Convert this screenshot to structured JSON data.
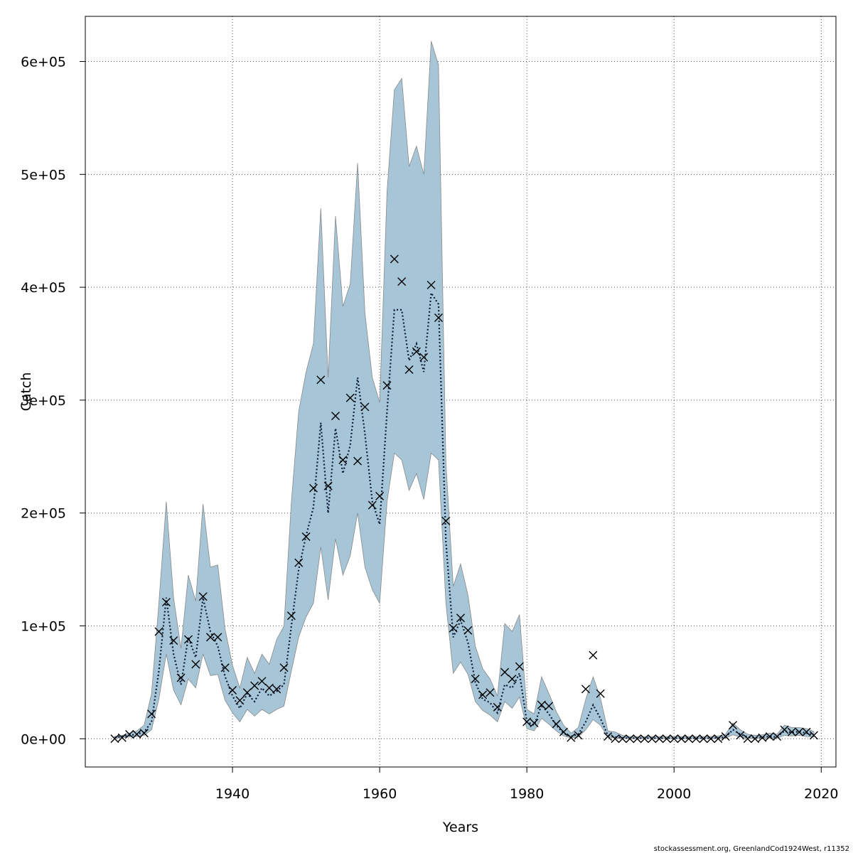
{
  "chart_data": {
    "type": "line",
    "title": "",
    "xlabel": "Years",
    "ylabel": "Catch",
    "xlim": [
      1920,
      2022
    ],
    "ylim": [
      -25000,
      640000
    ],
    "x_ticks": [
      1940,
      1960,
      1980,
      2000,
      2020
    ],
    "x_tick_labels": [
      "1940",
      "1960",
      "1980",
      "2000",
      "2020"
    ],
    "y_ticks": [
      0,
      100000,
      200000,
      300000,
      400000,
      500000,
      600000
    ],
    "y_tick_labels": [
      "0e+00",
      "1e+05",
      "2e+05",
      "3e+05",
      "4e+05",
      "5e+05",
      "6e+05"
    ],
    "grid": true,
    "colors": {
      "band": "#a6c5d6",
      "band_edge": "#8a8a8a",
      "line": "#0a1a3a",
      "points": "#000000",
      "grid": "#555555"
    },
    "footer_text": "stockassessment.org, GreenlandCod1924West, r11352",
    "series": [
      {
        "kind": "estimate",
        "x": [
          1924,
          1925,
          1926,
          1927,
          1928,
          1929,
          1930,
          1931,
          1932,
          1933,
          1934,
          1935,
          1936,
          1937,
          1938,
          1939,
          1940,
          1941,
          1942,
          1943,
          1944,
          1945,
          1946,
          1947,
          1948,
          1949,
          1950,
          1951,
          1952,
          1953,
          1954,
          1955,
          1956,
          1957,
          1958,
          1959,
          1960,
          1961,
          1962,
          1963,
          1964,
          1965,
          1966,
          1967,
          1968,
          1969,
          1970,
          1971,
          1972,
          1973,
          1974,
          1975,
          1976,
          1977,
          1978,
          1979,
          1980,
          1981,
          1982,
          1983,
          1984,
          1985,
          1986,
          1987,
          1988,
          1989,
          1990,
          1991,
          1992,
          1993,
          1994,
          1995,
          1996,
          1997,
          1998,
          1999,
          2000,
          2001,
          2002,
          2003,
          2004,
          2005,
          2006,
          2007,
          2008,
          2009,
          2010,
          2011,
          2012,
          2013,
          2014,
          2015,
          2016,
          2017,
          2018,
          2019
        ],
        "y": [
          1000,
          2000,
          3000,
          4000,
          6000,
          15000,
          60000,
          125000,
          75000,
          48000,
          90000,
          72000,
          125000,
          95000,
          82000,
          55000,
          38000,
          27000,
          40000,
          33000,
          45000,
          38000,
          42000,
          48000,
          100000,
          150000,
          180000,
          205000,
          280000,
          200000,
          275000,
          235000,
          260000,
          320000,
          270000,
          210000,
          190000,
          290000,
          380000,
          380000,
          335000,
          350000,
          325000,
          395000,
          385000,
          175000,
          90000,
          105000,
          85000,
          50000,
          35000,
          32000,
          23000,
          48000,
          45000,
          58000,
          15000,
          12000,
          30000,
          22000,
          12000,
          5000,
          2000,
          4000,
          15000,
          30000,
          18000,
          3000,
          1500,
          800,
          500,
          500,
          500,
          500,
          500,
          500,
          500,
          500,
          500,
          500,
          500,
          500,
          800,
          1500,
          8000,
          4000,
          1500,
          1000,
          1500,
          2000,
          1500,
          7000,
          5500,
          6500,
          5000,
          3500
        ]
      },
      {
        "kind": "interval_upper",
        "y": [
          2000,
          3000,
          5000,
          7000,
          12000,
          40000,
          120000,
          210000,
          125000,
          80000,
          145000,
          122000,
          208000,
          152000,
          154000,
          97000,
          65000,
          45000,
          72000,
          58000,
          75000,
          66000,
          88000,
          100000,
          210000,
          290000,
          325000,
          350000,
          470000,
          320000,
          463000,
          383000,
          403000,
          510000,
          377000,
          320000,
          298000,
          485000,
          575000,
          585000,
          507000,
          525000,
          500000,
          618000,
          597000,
          245000,
          135000,
          155000,
          127000,
          82000,
          62000,
          53000,
          38000,
          102000,
          95000,
          110000,
          26000,
          22000,
          55000,
          40000,
          24000,
          12000,
          5000,
          10000,
          35000,
          55000,
          36000,
          7000,
          6000,
          3000,
          2000,
          2000,
          2000,
          2000,
          2000,
          2000,
          2000,
          2000,
          2000,
          2000,
          2000,
          2000,
          2500,
          4000,
          14000,
          8000,
          4000,
          3000,
          3500,
          5000,
          4000,
          12000,
          10000,
          10000,
          9000,
          6500
        ]
      },
      {
        "kind": "interval_lower",
        "y": [
          500,
          1000,
          1500,
          2000,
          3000,
          8000,
          35000,
          75000,
          43000,
          30000,
          53000,
          45000,
          75000,
          56000,
          57000,
          34000,
          23000,
          15000,
          26000,
          20000,
          26000,
          22000,
          26000,
          29000,
          60000,
          90000,
          108000,
          120000,
          170000,
          123000,
          177000,
          145000,
          162000,
          200000,
          152000,
          132000,
          120000,
          210000,
          253000,
          247000,
          220000,
          235000,
          212000,
          253000,
          247000,
          120000,
          58000,
          68000,
          57000,
          33000,
          25000,
          21000,
          15000,
          33000,
          27000,
          37000,
          9000,
          7000,
          18000,
          13000,
          7000,
          2500,
          700,
          1500,
          8000,
          17000,
          12000,
          1500,
          500,
          200,
          100,
          100,
          100,
          100,
          100,
          100,
          100,
          100,
          100,
          100,
          100,
          100,
          200,
          600,
          3500,
          1500,
          500,
          300,
          500,
          700,
          500,
          3000,
          2500,
          3000,
          2000,
          1500
        ]
      },
      {
        "kind": "observed",
        "x": [
          1924,
          1925,
          1926,
          1927,
          1928,
          1929,
          1930,
          1931,
          1932,
          1933,
          1934,
          1935,
          1936,
          1937,
          1938,
          1939,
          1940,
          1941,
          1942,
          1943,
          1944,
          1945,
          1946,
          1947,
          1948,
          1949,
          1950,
          1951,
          1952,
          1953,
          1954,
          1955,
          1956,
          1957,
          1958,
          1959,
          1960,
          1961,
          1962,
          1963,
          1964,
          1965,
          1966,
          1967,
          1968,
          1969,
          1970,
          1971,
          1972,
          1973,
          1974,
          1975,
          1976,
          1977,
          1978,
          1979,
          1980,
          1981,
          1982,
          1983,
          1984,
          1985,
          1986,
          1987,
          1988,
          1989,
          1990,
          1991,
          1992,
          1993,
          1994,
          1995,
          1996,
          1997,
          1998,
          1999,
          2000,
          2001,
          2002,
          2003,
          2004,
          2005,
          2006,
          2007,
          2008,
          2009,
          2010,
          2011,
          2012,
          2013,
          2014,
          2015,
          2016,
          2017,
          2018,
          2019
        ],
        "y": [
          0,
          1000,
          4000,
          4000,
          5000,
          22000,
          95000,
          121000,
          87000,
          54000,
          88000,
          66000,
          126000,
          90000,
          90000,
          63000,
          43000,
          34000,
          41000,
          47000,
          51000,
          45000,
          44000,
          63000,
          109000,
          156000,
          179000,
          222000,
          318000,
          224000,
          286000,
          247000,
          302000,
          246000,
          294000,
          207000,
          215000,
          313000,
          425000,
          405000,
          327000,
          343000,
          338000,
          402000,
          373000,
          193000,
          98000,
          107000,
          96000,
          53000,
          39000,
          41000,
          28000,
          59000,
          53000,
          64000,
          15000,
          14000,
          30000,
          29000,
          13000,
          6000,
          1000,
          3000,
          44000,
          74000,
          40000,
          2000,
          0,
          0,
          0,
          0,
          0,
          0,
          0,
          0,
          0,
          0,
          0,
          0,
          0,
          0,
          0,
          2000,
          12000,
          3000,
          0,
          0,
          1000,
          2000,
          2000,
          8000,
          6000,
          6000,
          6000,
          3000
        ]
      }
    ]
  }
}
